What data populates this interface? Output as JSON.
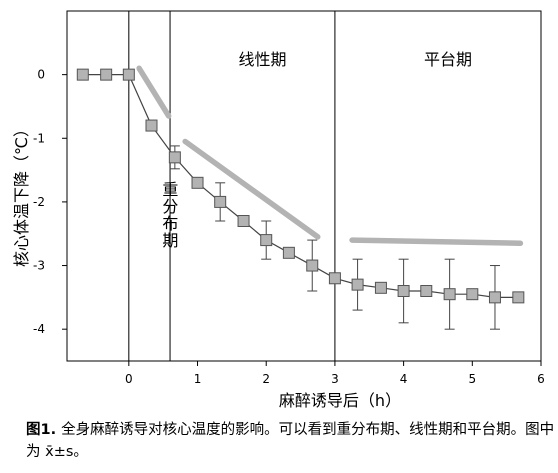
{
  "chart_data": {
    "type": "line",
    "ylabel": "核心体温下降（℃）",
    "xlabel": "麻醉诱导后（h）",
    "xlim": [
      -0.9,
      6.0
    ],
    "ylim": [
      -4.5,
      1.0
    ],
    "xticks": [
      0,
      1,
      2,
      3,
      4,
      5,
      6
    ],
    "yticks": [
      0,
      -1,
      -2,
      -3,
      -4
    ],
    "grid": false,
    "marker": "square",
    "marker_color": "#b3b3b3",
    "line_color": "#444444",
    "trend_color": "#b3b3b3",
    "series": [
      {
        "x": [
          -0.67,
          -0.33,
          0,
          0.33,
          0.67,
          1.0,
          1.33,
          1.67,
          2.0,
          2.33,
          2.67,
          3.0,
          3.33,
          3.67,
          4.0,
          4.33,
          4.67,
          5.0,
          5.33,
          5.67
        ],
        "y": [
          0,
          0,
          0,
          -0.8,
          -1.3,
          -1.7,
          -2.0,
          -2.3,
          -2.6,
          -2.8,
          -3.0,
          -3.2,
          -3.3,
          -3.35,
          -3.4,
          -3.4,
          -3.45,
          -3.45,
          -3.5,
          -3.5
        ],
        "error": [
          0,
          0,
          0,
          0,
          0.18,
          0,
          0.3,
          0,
          0.3,
          0,
          0.4,
          0,
          0.4,
          0,
          0.5,
          0,
          0.55,
          0,
          0.5,
          0
        ]
      }
    ],
    "phase_lines": [
      0,
      0.6,
      3.0
    ],
    "phases": [
      {
        "label": "重分布期",
        "x_center": 0.3,
        "y_center": -2.2,
        "vertical": true
      },
      {
        "label": "线性期",
        "x_center": 1.8,
        "y_center": 0.4
      },
      {
        "label": "平台期",
        "x_center": 4.5,
        "y_center": 0.4
      }
    ],
    "trend_lines": [
      {
        "x": [
          0.15,
          0.58
        ],
        "y": [
          0.1,
          -0.65
        ]
      },
      {
        "x": [
          0.82,
          2.75
        ],
        "y": [
          -1.05,
          -2.55
        ]
      },
      {
        "x": [
          3.25,
          5.7
        ],
        "y": [
          -2.6,
          -2.65
        ]
      }
    ]
  },
  "caption": {
    "label": "图1",
    "sep": ". ",
    "text": "全身麻醉诱导对核心温度的影响。可以看到重分布期、线性期和平台期。图中为 ",
    "stat": "x̄±s",
    "end": "。"
  }
}
